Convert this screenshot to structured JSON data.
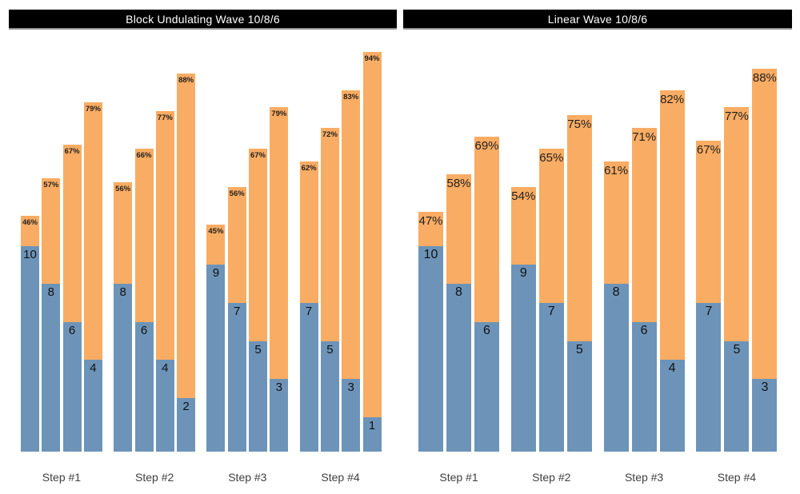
{
  "colors": {
    "bar_blue": "#6D94B8",
    "bar_orange": "#F9AC63",
    "title_bg": "#000000",
    "title_text": "#FFFFFF",
    "label_text": "#1F1F1F",
    "axis_label_text": "#3F3F3F"
  },
  "chart_data": [
    {
      "type": "bar",
      "subtype": "dodged-stacked",
      "title": "Block Undulating Wave 10/8/6",
      "categories": [
        "Step #1",
        "Step #2",
        "Step #3",
        "Step #4"
      ],
      "series": [
        {
          "category": "Step #1",
          "reps": [
            10,
            8,
            6,
            4
          ],
          "pct": [
            46,
            57,
            67,
            79
          ]
        },
        {
          "category": "Step #2",
          "reps": [
            8,
            6,
            4,
            2
          ],
          "pct": [
            56,
            66,
            77,
            88
          ]
        },
        {
          "category": "Step #3",
          "reps": [
            9,
            7,
            5,
            3
          ],
          "pct": [
            45,
            56,
            67,
            79
          ]
        },
        {
          "category": "Step #4",
          "reps": [
            7,
            5,
            3,
            1
          ],
          "pct": [
            62,
            72,
            83,
            94
          ]
        }
      ],
      "bottom_segment_meaning": "reps",
      "top_segment_meaning": "percent of max",
      "pct_label_suffix": "%",
      "xlabel": "",
      "ylabel": "",
      "ylim": [
        0,
        100
      ],
      "grid": false,
      "axes_hidden": true,
      "legend": "none"
    },
    {
      "type": "bar",
      "subtype": "dodged-stacked",
      "title": "Linear Wave 10/8/6",
      "categories": [
        "Step #1",
        "Step #2",
        "Step #3",
        "Step #4"
      ],
      "series": [
        {
          "category": "Step #1",
          "reps": [
            10,
            8,
            6
          ],
          "pct": [
            47,
            58,
            69
          ]
        },
        {
          "category": "Step #2",
          "reps": [
            9,
            7,
            5
          ],
          "pct": [
            54,
            65,
            75
          ]
        },
        {
          "category": "Step #3",
          "reps": [
            8,
            6,
            4
          ],
          "pct": [
            61,
            71,
            82
          ]
        },
        {
          "category": "Step #4",
          "reps": [
            7,
            5,
            3
          ],
          "pct": [
            67,
            77,
            88
          ]
        }
      ],
      "bottom_segment_meaning": "reps",
      "top_segment_meaning": "percent of max",
      "pct_label_suffix": "%",
      "xlabel": "",
      "ylabel": "",
      "ylim": [
        0,
        100
      ],
      "grid": false,
      "axes_hidden": true,
      "legend": "none"
    }
  ]
}
